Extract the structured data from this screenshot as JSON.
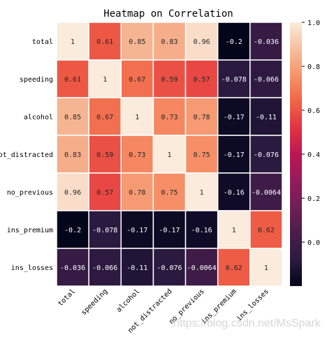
{
  "chart_data": {
    "type": "heatmap",
    "title": "Heatmap on Correlation",
    "row_labels": [
      "total",
      "speeding",
      "alcohol",
      "not_distracted",
      "no_previous",
      "ins_premium",
      "ins_losses"
    ],
    "col_labels": [
      "total",
      "speeding",
      "alcohol",
      "not_distracted",
      "no_previous",
      "ins_premium",
      "ins_losses"
    ],
    "values": [
      [
        1,
        0.61,
        0.85,
        0.83,
        0.96,
        -0.2,
        -0.036
      ],
      [
        0.61,
        1,
        0.67,
        0.59,
        0.57,
        -0.078,
        -0.066
      ],
      [
        0.85,
        0.67,
        1,
        0.73,
        0.78,
        -0.17,
        -0.11
      ],
      [
        0.83,
        0.59,
        0.73,
        1,
        0.75,
        -0.17,
        -0.076
      ],
      [
        0.96,
        0.57,
        0.78,
        0.75,
        1,
        -0.16,
        -0.0064
      ],
      [
        -0.2,
        -0.078,
        -0.17,
        -0.17,
        -0.16,
        1,
        0.62
      ],
      [
        -0.036,
        -0.066,
        -0.11,
        -0.076,
        -0.0064,
        0.62,
        1
      ]
    ],
    "colorbar": {
      "min": -0.2,
      "max": 1.0,
      "ticks": [
        "0.0",
        "0.2",
        "0.4",
        "0.6",
        "0.8",
        "1.0"
      ],
      "colormap": "rocket",
      "position": "right"
    },
    "cell_borders": true,
    "annotated": true
  },
  "watermark": "https://blog.csdn.net/MsSpark"
}
